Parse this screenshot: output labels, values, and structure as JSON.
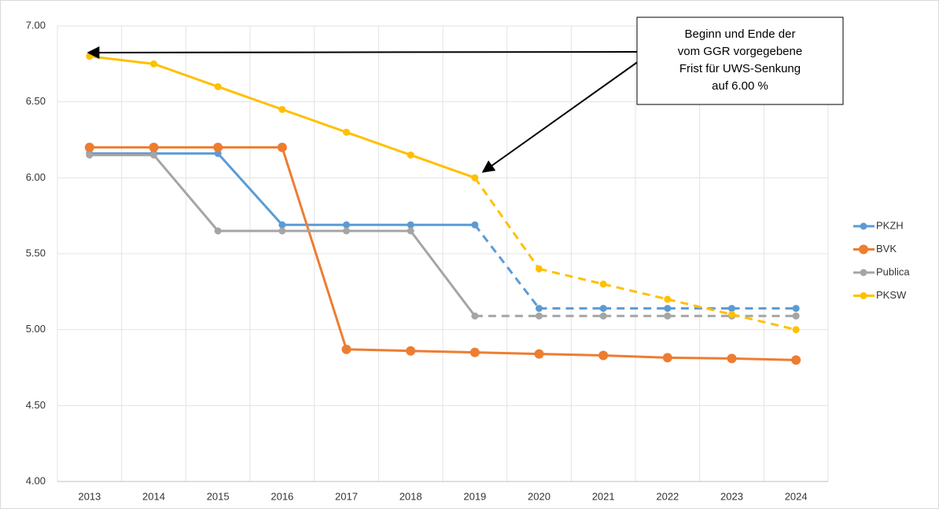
{
  "chart_data": {
    "type": "line",
    "categories": [
      "2013",
      "2014",
      "2015",
      "2016",
      "2017",
      "2018",
      "2019",
      "2020",
      "2021",
      "2022",
      "2023",
      "2024"
    ],
    "series": [
      {
        "name": "PKZH",
        "color": "#5b9bd5",
        "dashed_after": 6,
        "values": [
          6.16,
          6.16,
          6.16,
          5.69,
          5.69,
          5.69,
          5.69,
          5.14,
          5.14,
          5.14,
          5.14,
          5.14
        ]
      },
      {
        "name": "BVK",
        "color": "#ed7d31",
        "values": [
          6.2,
          6.2,
          6.2,
          6.2,
          4.87,
          4.86,
          4.85,
          4.84,
          4.83,
          4.815,
          4.81,
          4.8
        ]
      },
      {
        "name": "Publica",
        "color": "#a5a5a5",
        "dashed_after": 6,
        "values": [
          6.15,
          6.15,
          5.65,
          5.65,
          5.65,
          5.65,
          5.09,
          5.09,
          5.09,
          5.09,
          5.09,
          5.09
        ]
      },
      {
        "name": "PKSW",
        "color": "#ffc000",
        "dashed_after": 6,
        "values": [
          6.8,
          6.75,
          6.6,
          6.45,
          6.3,
          6.15,
          6.0,
          5.4,
          5.3,
          5.2,
          5.1,
          5.0
        ]
      }
    ],
    "ylim": [
      4,
      7
    ],
    "yticks": [
      {
        "value": 4,
        "label": "4.00"
      },
      {
        "value": 4.5,
        "label": "4.50"
      },
      {
        "value": 5,
        "label": "5.00"
      },
      {
        "value": 5.5,
        "label": "5.50"
      },
      {
        "value": 6,
        "label": "6.00"
      },
      {
        "value": 6.5,
        "label": "6.50"
      },
      {
        "value": 7,
        "label": "7.00"
      }
    ],
    "grid": true,
    "legend": "right",
    "annotation": {
      "lines": [
        "Beginn und Ende der",
        "vom GGR vorgegebene",
        "Frist für UWS-Senkung",
        "auf 6.00 %"
      ]
    }
  }
}
